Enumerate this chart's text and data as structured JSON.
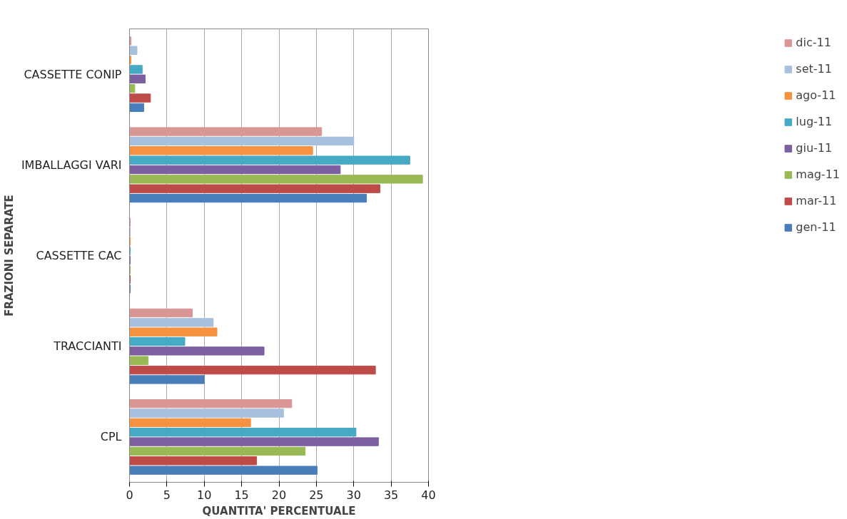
{
  "chart_data": {
    "type": "bar",
    "orientation": "horizontal",
    "xlabel": "QUANTITA' PERCENTUALE",
    "ylabel": "FRAZIONI SEPARATE",
    "categories": [
      "CASSETTE CONIP",
      "IMBALLAGGI VARI",
      "CASSETTE CAC",
      "TRACCIANTI",
      "CPL"
    ],
    "series": [
      {
        "name": "gen-11",
        "color": "#4a7ebb",
        "values": [
          1.9,
          31.7,
          0.1,
          10.0,
          25.1
        ]
      },
      {
        "name": "mar-11",
        "color": "#be4b48",
        "values": [
          2.8,
          33.5,
          0.1,
          32.9,
          17.0
        ]
      },
      {
        "name": "mag-11",
        "color": "#98b954",
        "values": [
          0.7,
          39.2,
          0.1,
          2.5,
          23.5
        ]
      },
      {
        "name": "giu-11",
        "color": "#7d60a0",
        "values": [
          2.1,
          28.2,
          0.1,
          18.0,
          33.3
        ]
      },
      {
        "name": "lug-11",
        "color": "#46aac5",
        "values": [
          1.7,
          37.5,
          0.1,
          7.4,
          30.3
        ]
      },
      {
        "name": "ago-11",
        "color": "#f69240",
        "values": [
          0.2,
          24.5,
          0.1,
          11.7,
          16.2
        ]
      },
      {
        "name": "set-11",
        "color": "#a7c0de",
        "values": [
          1.0,
          30.0,
          0.1,
          11.2,
          20.6
        ]
      },
      {
        "name": "dic-11",
        "color": "#da9695",
        "values": [
          0.2,
          25.7,
          0.1,
          8.4,
          21.7
        ]
      }
    ],
    "xlim": [
      0,
      40
    ],
    "xticks": [
      0,
      5,
      10,
      15,
      20,
      25,
      30,
      35,
      40
    ],
    "grid": "x",
    "legend": "right"
  }
}
